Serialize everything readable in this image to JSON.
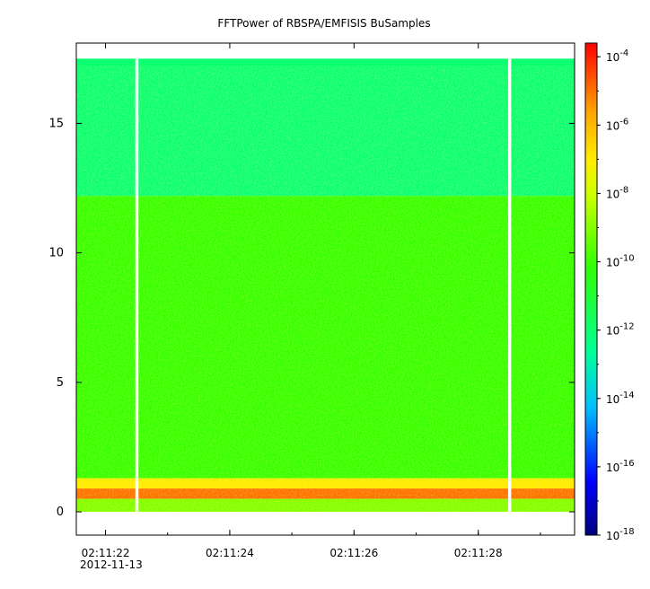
{
  "chart_data": {
    "type": "heatmap",
    "title": "FFTPower of RBSPA/EMFISIS  BuSamples",
    "xlabel": "",
    "ylabel": "",
    "x_date_label": "2012-11-13",
    "x_range": [
      "02:11:21.53",
      "02:11:29.55"
    ],
    "x_ticks": [
      "02:11:22",
      "02:11:24",
      "02:11:26",
      "02:11:28"
    ],
    "y_range": [
      -0.9,
      18.1
    ],
    "y_ticks": [
      0,
      5,
      10,
      15
    ],
    "colorbar": {
      "scale": "log",
      "colormap": "rainbow",
      "range_exponent": [
        -18,
        -3.6
      ],
      "tick_exponents": [
        -4,
        -6,
        -8,
        -10,
        -12,
        -14,
        -16,
        -18
      ],
      "tick_base": "10"
    },
    "data_y_top": 17.5,
    "data_gaps": [
      {
        "start": "02:11:22.48",
        "end": "02:11:22.53"
      },
      {
        "start": "02:11:28.48",
        "end": "02:11:28.53"
      }
    ],
    "frequency_bands": [
      {
        "y_from": 0.9,
        "y_to": 1.3,
        "level": "1e-7",
        "description": "yellow-orange"
      },
      {
        "y_from": 0.5,
        "y_to": 0.9,
        "level": "1e-5",
        "description": "red-orange"
      },
      {
        "y_from": 0.0,
        "y_to": 0.5,
        "level": "1e-9",
        "description": "yellow"
      },
      {
        "y_from": 1.3,
        "y_to": 12.2,
        "level": "1e-10",
        "description": "green"
      },
      {
        "y_from": 12.2,
        "y_to": 17.5,
        "level": "1e-12",
        "description": "cyan-green"
      }
    ]
  }
}
